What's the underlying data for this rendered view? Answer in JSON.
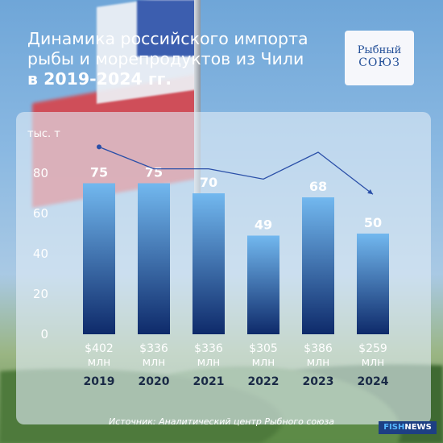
{
  "heading": {
    "line1": "Динамика российского импорта",
    "line2": "рыбы и морепродуктов из Чили",
    "line3": "в 2019-2024 гг."
  },
  "logo": {
    "line1": "Рыбный",
    "line2": "СОЮЗ"
  },
  "source": "Источник: Аналитический центр Рыбного союза",
  "badge": {
    "part1": "FISH",
    "part2": "NEWS"
  },
  "colors": {
    "bar_top": "#72b8ef",
    "bar_bottom": "#0e2a6a",
    "line": "#2a4fa8",
    "text_dark": "#1a2a46"
  },
  "chart_data": {
    "type": "bar",
    "ylabel": "тыс. т",
    "ylim": [
      0,
      80
    ],
    "yticks": [
      "0",
      "20",
      "40",
      "60",
      "80"
    ],
    "categories": [
      "2019",
      "2020",
      "2021",
      "2022",
      "2023",
      "2024"
    ],
    "values": [
      75,
      75,
      70,
      49,
      68,
      50
    ],
    "value_labels": [
      "75",
      "75",
      "70",
      "49",
      "68",
      "50"
    ],
    "cost_labels": [
      [
        "$402",
        "млн"
      ],
      [
        "$336",
        "млн"
      ],
      [
        "$336",
        "млн"
      ],
      [
        "$305",
        "млн"
      ],
      [
        "$386",
        "млн"
      ],
      [
        "$259",
        "млн"
      ]
    ],
    "trend_costs": [
      402,
      336,
      336,
      305,
      386,
      259
    ]
  }
}
